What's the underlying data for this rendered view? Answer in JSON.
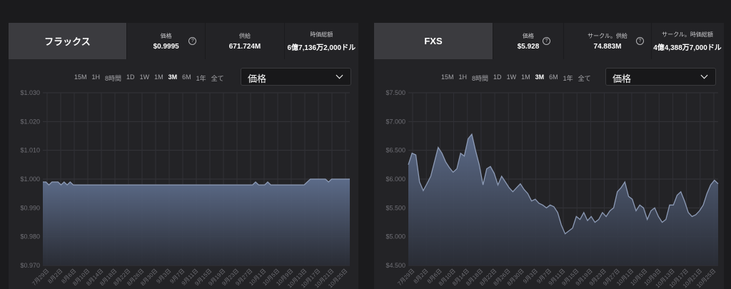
{
  "panels": [
    {
      "name": "フラックス",
      "stats": [
        {
          "label": "価格",
          "value": "$0.9995",
          "help": true
        },
        {
          "label": "供給",
          "value": "671.724M",
          "help": false
        },
        {
          "label": "時価総額",
          "value": "6億7,136万2,000ドル",
          "help": false
        }
      ],
      "ranges": [
        "15M",
        "1H",
        "8時間",
        "1D",
        "1W",
        "1M",
        "3M",
        "6M",
        "1年",
        "全て"
      ],
      "active_range": "3M",
      "metric": "価格"
    },
    {
      "name": "FXS",
      "stats": [
        {
          "label": "価格",
          "value": "$5.928",
          "help": true
        },
        {
          "label": "サークル。供給",
          "value": "74.883M",
          "help": true
        },
        {
          "label": "サークル。時価総額",
          "value": "4億4,388万7,000ドル",
          "help": false
        }
      ],
      "ranges": [
        "15M",
        "1H",
        "8時間",
        "1D",
        "1W",
        "1M",
        "3M",
        "6M",
        "1年",
        "全て"
      ],
      "active_range": "3M",
      "metric": "価格"
    }
  ],
  "chart_data": [
    {
      "type": "area",
      "ylim": [
        0.97,
        1.03
      ],
      "yticks": [
        "$1.030",
        "$1.020",
        "$1.010",
        "$1.000",
        "$0.990",
        "$0.980",
        "$0.970"
      ],
      "xticks": [
        "7月29日",
        "8月2日",
        "8月6日",
        "8月10日",
        "8月14日",
        "8月18日",
        "8月22日",
        "8月26日",
        "8月30日",
        "9月3日",
        "9月7日",
        "9月11日",
        "9月15日",
        "9月19日",
        "9月23日",
        "9月27日",
        "10月1日",
        "10月5日",
        "10月9日",
        "10月13日",
        "10月17日",
        "10月21日",
        "10月25日"
      ],
      "grid": true,
      "color": "#8d9bb6",
      "values": [
        0.999,
        0.999,
        0.998,
        0.999,
        0.999,
        0.999,
        0.998,
        0.999,
        0.998,
        0.999,
        0.998,
        0.998,
        0.998,
        0.998,
        0.998,
        0.998,
        0.998,
        0.998,
        0.998,
        0.998,
        0.998,
        0.998,
        0.998,
        0.998,
        0.998,
        0.998,
        0.998,
        0.998,
        0.998,
        0.998,
        0.998,
        0.998,
        0.998,
        0.998,
        0.998,
        0.998,
        0.998,
        0.998,
        0.998,
        0.998,
        0.998,
        0.998,
        0.998,
        0.998,
        0.998,
        0.998,
        0.998,
        0.998,
        0.998,
        0.998,
        0.998,
        0.998,
        0.998,
        0.998,
        0.998,
        0.998,
        0.998,
        0.998,
        0.998,
        0.998,
        0.998,
        0.998,
        0.998,
        0.998,
        0.998,
        0.998,
        0.998,
        0.998,
        0.998,
        0.998,
        0.999,
        0.998,
        0.998,
        0.998,
        0.999,
        0.998,
        0.998,
        0.998,
        0.998,
        0.998,
        0.998,
        0.998,
        0.998,
        0.998,
        0.998,
        0.998,
        0.998,
        0.999,
        1.0,
        1.0,
        1.0,
        1.0,
        1.0,
        1.0,
        0.999,
        1.0,
        1.0,
        1.0,
        1.0,
        1.0,
        1.0,
        1.0
      ]
    },
    {
      "type": "area",
      "ylim": [
        4.5,
        7.5
      ],
      "yticks": [
        "$7.500",
        "$7.000",
        "$6.500",
        "$6.000",
        "$5.500",
        "$5.000",
        "$4.500"
      ],
      "xticks": [
        "7月29日",
        "8月2日",
        "8月6日",
        "8月10日",
        "8月14日",
        "8月18日",
        "8月22日",
        "8月26日",
        "8月30日",
        "9月3日",
        "9月7日",
        "9月11日",
        "9月15日",
        "9月19日",
        "9月23日",
        "9月27日",
        "10月1日",
        "10月5日",
        "10月9日",
        "10月13日",
        "10月17日",
        "10月21日",
        "10月25日"
      ],
      "grid": true,
      "color": "#8d9bb6",
      "values": [
        6.25,
        6.45,
        6.42,
        5.95,
        5.8,
        5.92,
        6.05,
        6.3,
        6.55,
        6.45,
        6.3,
        6.2,
        6.12,
        6.18,
        6.45,
        6.4,
        6.7,
        6.78,
        6.5,
        6.25,
        5.9,
        6.18,
        6.22,
        6.1,
        5.9,
        6.05,
        5.95,
        5.85,
        5.78,
        5.85,
        5.92,
        5.82,
        5.75,
        5.62,
        5.65,
        5.58,
        5.55,
        5.5,
        5.55,
        5.52,
        5.42,
        5.2,
        5.05,
        5.1,
        5.15,
        5.35,
        5.3,
        5.42,
        5.28,
        5.35,
        5.25,
        5.3,
        5.42,
        5.35,
        5.45,
        5.5,
        5.78,
        5.85,
        5.95,
        5.7,
        5.65,
        5.45,
        5.55,
        5.5,
        5.3,
        5.45,
        5.5,
        5.35,
        5.25,
        5.3,
        5.55,
        5.55,
        5.72,
        5.78,
        5.62,
        5.42,
        5.35,
        5.38,
        5.45,
        5.55,
        5.75,
        5.9,
        5.98,
        5.92
      ]
    }
  ]
}
